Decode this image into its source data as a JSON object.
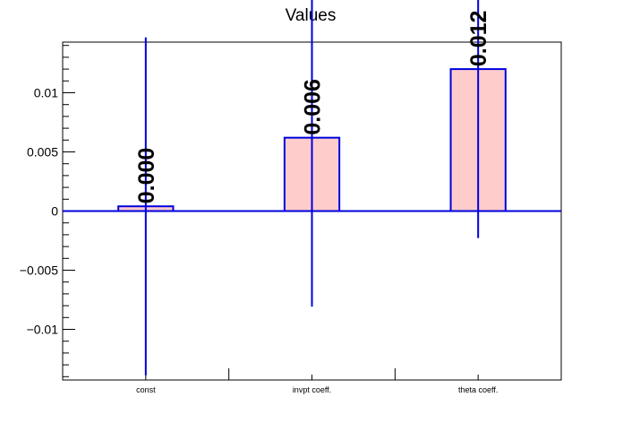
{
  "chart_data": {
    "type": "bar",
    "title": "Values",
    "categories": [
      "const",
      "invpt coeff.",
      "theta coeff."
    ],
    "values": [
      0.0004,
      0.0062,
      0.012
    ],
    "errors": [
      0.01428,
      0.01428,
      0.01428
    ],
    "data_labels": [
      "0.000",
      "0.006",
      "0.012"
    ],
    "y_ticks": [
      -0.01,
      -0.005,
      0,
      0.005,
      0.01
    ],
    "y_tick_labels": [
      "−0.01",
      "−0.005",
      "0",
      "0.005",
      "0.01"
    ],
    "ylim": [
      -0.01428,
      0.01428
    ],
    "xlabel": "",
    "ylabel": "",
    "grid": false,
    "colors": {
      "bar_fill": "#ffcccc",
      "bar_outline": "#0000dd",
      "frame": "#000000"
    }
  }
}
